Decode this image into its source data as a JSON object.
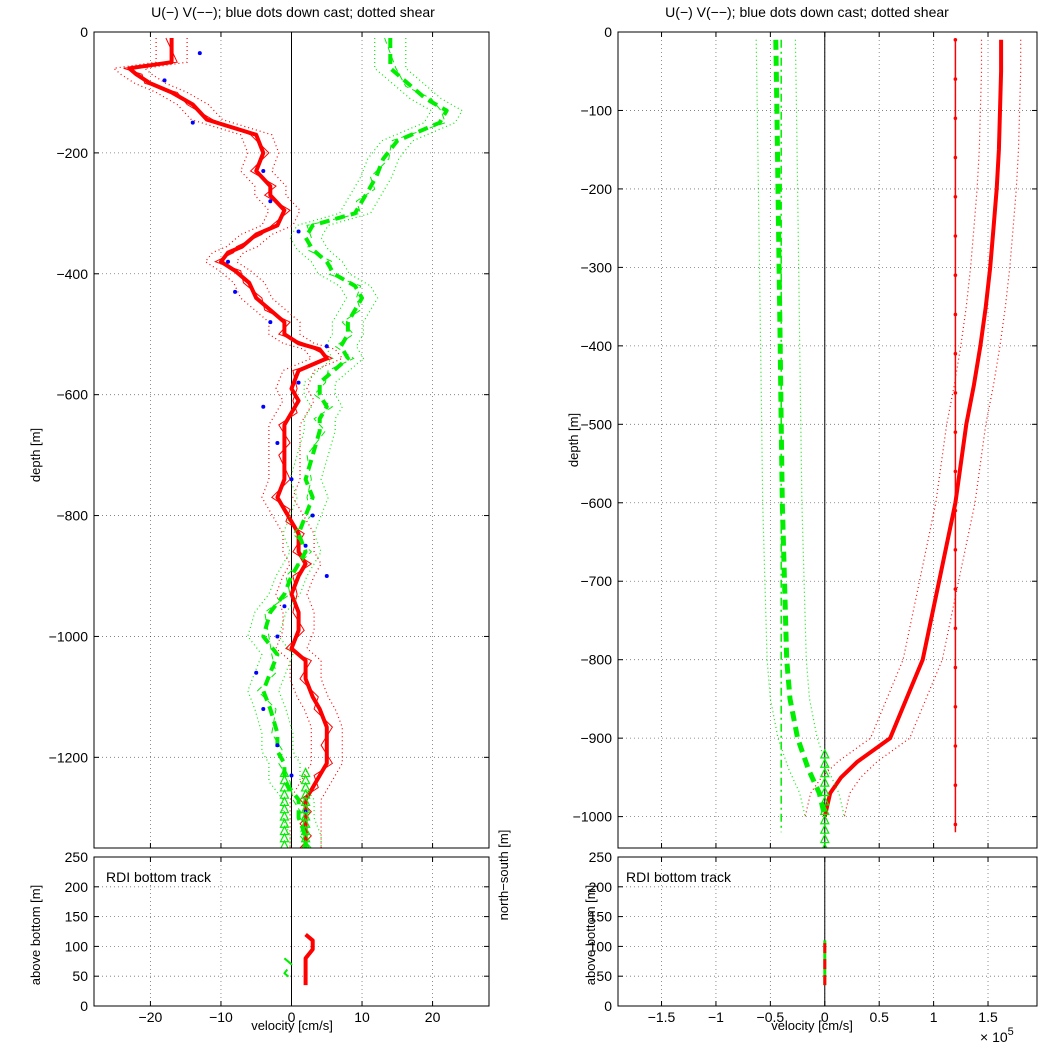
{
  "chart_data": [
    {
      "type": "line",
      "panel": "left-main",
      "title": "U(−) V(−−); blue dots down cast; dotted shear",
      "xlabel": "",
      "ylabel": "depth [m]",
      "xlim": [
        -28,
        28
      ],
      "ylim": [
        -1350,
        0
      ],
      "xticks": [
        -20,
        -10,
        0,
        10,
        20
      ],
      "xtick_labels": [
        "−20",
        "−10",
        "0",
        "10",
        "20"
      ],
      "yticks": [
        0,
        -200,
        -400,
        -600,
        -800,
        -1000,
        -1200
      ],
      "ytick_labels": [
        "0",
        "−200",
        "−400",
        "−600",
        "−800",
        "−1000",
        "−1200"
      ],
      "grid": true,
      "series": [
        {
          "role": "U",
          "color": "#ff0000",
          "style": "solid",
          "width": 4,
          "x": [
            -17,
            -17,
            -23,
            -22,
            -20,
            -17,
            -14,
            -12,
            -5,
            -4,
            -5,
            -3,
            -3,
            -1,
            -2,
            -5,
            -7,
            -9,
            -10,
            -8,
            -6,
            -5,
            -3,
            -1,
            -1,
            1,
            4,
            5,
            1,
            0,
            1,
            0,
            -1,
            -1,
            -1,
            -1,
            -2,
            -1,
            0,
            1,
            1,
            2,
            1,
            0,
            1,
            1,
            0,
            2,
            2,
            3,
            4,
            5,
            5,
            5,
            4,
            3,
            2,
            2,
            2,
            2,
            2
          ],
          "y": [
            -10,
            -50,
            -60,
            -70,
            -85,
            -100,
            -120,
            -145,
            -170,
            -200,
            -230,
            -255,
            -270,
            -295,
            -320,
            -335,
            -355,
            -365,
            -380,
            -395,
            -415,
            -440,
            -460,
            -480,
            -500,
            -515,
            -525,
            -540,
            -560,
            -590,
            -610,
            -630,
            -650,
            -680,
            -700,
            -740,
            -770,
            -790,
            -810,
            -830,
            -860,
            -880,
            -900,
            -930,
            -960,
            -990,
            -1020,
            -1040,
            -1070,
            -1100,
            -1120,
            -1150,
            -1180,
            -1210,
            -1230,
            -1250,
            -1270,
            -1290,
            -1310,
            -1330,
            -1350
          ]
        },
        {
          "role": "V",
          "color": "#00ee00",
          "style": "dashed",
          "width": 4,
          "x": [
            14,
            14,
            17,
            19,
            22,
            21,
            15,
            13,
            12,
            11,
            10,
            9,
            3,
            2,
            3,
            5,
            6,
            9,
            10,
            9,
            8,
            8,
            7,
            8,
            6,
            4,
            4,
            5,
            4,
            4,
            3,
            2,
            3,
            2,
            1,
            2,
            0,
            -1,
            -3,
            -4,
            -2,
            -3,
            -4,
            -3,
            -2,
            -2,
            -1,
            -1,
            1,
            1,
            2,
            2
          ],
          "y": [
            -10,
            -60,
            -90,
            -110,
            -130,
            -150,
            -180,
            -210,
            -240,
            -260,
            -280,
            -300,
            -320,
            -340,
            -360,
            -380,
            -400,
            -420,
            -440,
            -460,
            -480,
            -500,
            -520,
            -540,
            -560,
            -580,
            -600,
            -620,
            -640,
            -660,
            -700,
            -740,
            -770,
            -800,
            -830,
            -860,
            -900,
            -930,
            -960,
            -1000,
            -1030,
            -1060,
            -1090,
            -1120,
            -1160,
            -1190,
            -1210,
            -1240,
            -1270,
            -1300,
            -1330,
            -1350
          ]
        },
        {
          "role": "downcast-dots",
          "color": "#0000ff",
          "style": "dots",
          "x": [
            -13,
            -18,
            -14,
            -4,
            -3,
            1,
            -9,
            -8,
            -3,
            5,
            1,
            -4,
            -2,
            0,
            3,
            2,
            5,
            -1,
            -2,
            -5,
            -4,
            -2,
            0,
            2
          ],
          "y": [
            -35,
            -80,
            -150,
            -230,
            -280,
            -330,
            -380,
            -430,
            -480,
            -520,
            -580,
            -620,
            -680,
            -740,
            -800,
            -850,
            -900,
            -950,
            -1000,
            -1060,
            -1120,
            -1180,
            -1230,
            -1290
          ]
        }
      ],
      "annotations": [
        "triangles near bottom: bottom-track markers"
      ]
    },
    {
      "type": "line",
      "panel": "left-bottom",
      "annotation": "RDI bottom track",
      "xlabel": "velocity [cm/s]",
      "ylabel": "above bottom [m]",
      "xlim": [
        -28,
        28
      ],
      "ylim": [
        0,
        250
      ],
      "yticks": [
        0,
        50,
        100,
        150,
        200,
        250
      ],
      "grid": true,
      "series": [
        {
          "role": "U",
          "color": "#ff0000",
          "style": "solid",
          "width": 4,
          "x": [
            2,
            3,
            3,
            2,
            2,
            2,
            2
          ],
          "y": [
            120,
            110,
            95,
            80,
            65,
            50,
            35
          ]
        },
        {
          "role": "V",
          "color": "#00ee00",
          "style": "dashed",
          "width": 2,
          "x": [
            -1,
            0,
            -1,
            0
          ],
          "y": [
            80,
            70,
            55,
            45
          ]
        }
      ]
    },
    {
      "type": "line",
      "panel": "right-main",
      "title": "U(−) V(−−); blue dots down cast; dotted shear",
      "xlabel": "",
      "ylabel": "depth [m]",
      "xlim": [
        -1.9,
        1.95
      ],
      "ylim": [
        -1040,
        0
      ],
      "xticks": [
        -1.5,
        -1,
        -0.5,
        0,
        0.5,
        1,
        1.5
      ],
      "xtick_labels": [
        "−1.5",
        "−1",
        "−0.5",
        "0",
        "0.5",
        "1",
        "1.5"
      ],
      "yticks": [
        0,
        -100,
        -200,
        -300,
        -400,
        -500,
        -600,
        -700,
        -800,
        -900,
        -1000
      ],
      "ytick_labels": [
        "0",
        "−100",
        "−200",
        "−300",
        "−400",
        "−500",
        "−600",
        "−700",
        "−800",
        "−900",
        "−1000"
      ],
      "x_multiplier": "× 10",
      "x_multiplier_exp": "5",
      "grid": true,
      "series": [
        {
          "role": "U",
          "color": "#ff0000",
          "style": "solid",
          "width": 4,
          "x": [
            1.62,
            1.62,
            1.61,
            1.6,
            1.58,
            1.55,
            1.52,
            1.48,
            1.43,
            1.37,
            1.3,
            1.2,
            1.05,
            0.9,
            0.75,
            0.6,
            0.3,
            0.15,
            0.05,
            0
          ],
          "y": [
            -10,
            -50,
            -100,
            -150,
            -200,
            -250,
            -300,
            -350,
            -400,
            -450,
            -500,
            -600,
            -700,
            -800,
            -850,
            -900,
            -930,
            -950,
            -970,
            -1000
          ]
        },
        {
          "role": "V",
          "color": "#00ee00",
          "style": "dashed",
          "width": 5,
          "x": [
            -0.45,
            -0.44,
            -0.43,
            -0.42,
            -0.41,
            -0.4,
            -0.39,
            -0.37,
            -0.35,
            -0.32,
            -0.25,
            -0.15,
            -0.05,
            0
          ],
          "y": [
            -10,
            -100,
            -200,
            -300,
            -400,
            -500,
            -600,
            -700,
            -800,
            -850,
            -900,
            -940,
            -970,
            -1000
          ]
        },
        {
          "role": "V-thin",
          "color": "#00ee00",
          "style": "dashdot",
          "width": 1.5,
          "x": [
            -0.4,
            -0.4
          ],
          "y": [
            -10,
            -1020
          ]
        },
        {
          "role": "U-thin",
          "color": "#ff0000",
          "style": "solid-dots",
          "width": 1.5,
          "x": [
            1.2,
            1.2
          ],
          "y": [
            -10,
            -1020
          ]
        }
      ]
    },
    {
      "type": "line",
      "panel": "right-bottom",
      "annotation": "RDI bottom track",
      "xlabel": "velocity [cm/s]",
      "ylabel": "above bottom [m]",
      "xlim": [
        -1.9,
        1.95
      ],
      "ylim": [
        0,
        250
      ],
      "yticks": [
        0,
        50,
        100,
        150,
        200,
        250
      ],
      "grid": true,
      "series": [
        {
          "role": "V",
          "color": "#00ee00",
          "style": "solid",
          "width": 3,
          "x": [
            0,
            0
          ],
          "y": [
            35,
            110
          ]
        },
        {
          "role": "U",
          "color": "#ff0000",
          "style": "dashed",
          "width": 3,
          "x": [
            0,
            0
          ],
          "y": [
            35,
            110
          ]
        }
      ]
    }
  ],
  "overlap_label": "north−south [m]"
}
